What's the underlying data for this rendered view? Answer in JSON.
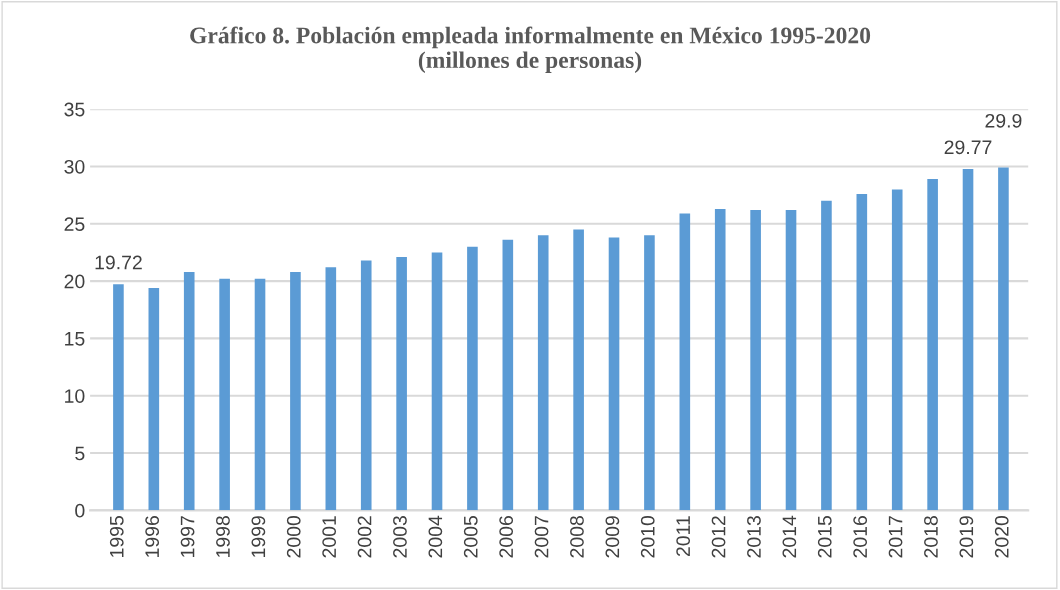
{
  "chart_data": {
    "type": "bar",
    "title": "Gráfico 8. Población empleada informalmente en México 1995-2020\n(millones de personas)",
    "categories": [
      "1995",
      "1996",
      "1997",
      "1998",
      "1999",
      "2000",
      "2001",
      "2002",
      "2003",
      "2004",
      "2005",
      "2006",
      "2007",
      "2008",
      "2009",
      "2010",
      "2011",
      "2012",
      "2013",
      "2014",
      "2015",
      "2016",
      "2017",
      "2018",
      "2019",
      "2020"
    ],
    "values": [
      19.72,
      19.4,
      20.8,
      20.2,
      20.2,
      20.8,
      21.2,
      21.8,
      22.1,
      22.5,
      23.0,
      23.6,
      24.0,
      24.5,
      23.8,
      24.0,
      25.9,
      26.3,
      26.2,
      26.2,
      27.0,
      27.6,
      28.0,
      28.9,
      29.77,
      29.9
    ],
    "value_labels": [
      "19.72",
      null,
      null,
      null,
      null,
      null,
      null,
      null,
      null,
      null,
      null,
      null,
      null,
      null,
      null,
      null,
      null,
      null,
      null,
      null,
      null,
      null,
      null,
      null,
      "29.77",
      "29.9"
    ],
    "color": "#5b9bd5",
    "ylim": [
      0,
      35
    ],
    "yticks": [
      0,
      5,
      10,
      15,
      20,
      25,
      30,
      35
    ],
    "grid": "y"
  }
}
